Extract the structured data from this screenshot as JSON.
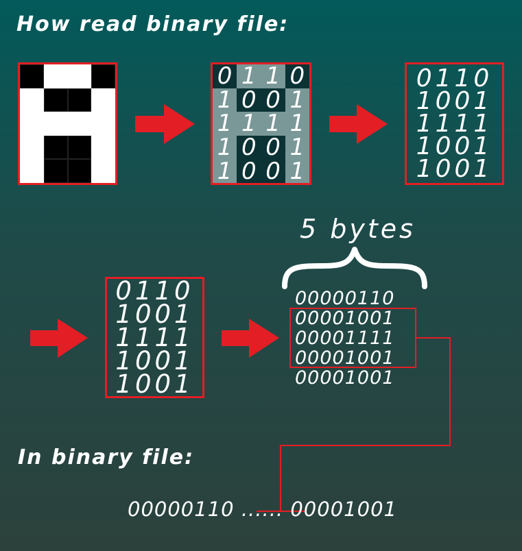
{
  "title": "How read binary file:",
  "subtitle": "In binary file:",
  "bytes_label": "5 bytes",
  "pixel_grid": [
    [
      1,
      0,
      0,
      1
    ],
    [
      0,
      1,
      1,
      0
    ],
    [
      0,
      0,
      0,
      0
    ],
    [
      0,
      1,
      1,
      0
    ],
    [
      0,
      1,
      1,
      0
    ]
  ],
  "bit_rows": [
    [
      "0",
      "1",
      "1",
      "0"
    ],
    [
      "1",
      "0",
      "0",
      "1"
    ],
    [
      "1",
      "1",
      "1",
      "1"
    ],
    [
      "1",
      "0",
      "0",
      "1"
    ],
    [
      "1",
      "0",
      "0",
      "1"
    ]
  ],
  "rows_text": [
    "0110",
    "1001",
    "1111",
    "1001",
    "1001"
  ],
  "bytes": [
    "00000110",
    "00001001",
    "00001111",
    "00001001",
    "00001001"
  ],
  "file_line": {
    "first": "00000110",
    "dots": "......",
    "last": "00001001"
  },
  "colors": {
    "accent_red": "#e31e24",
    "background_top": "#035a5a",
    "background_bottom": "#2c413c"
  }
}
